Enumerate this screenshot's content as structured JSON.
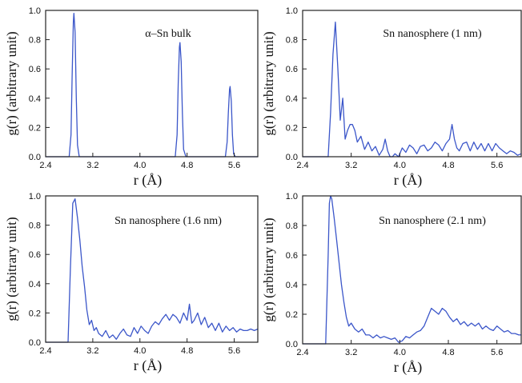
{
  "line_color": "#3b56c9",
  "chart_data": [
    {
      "type": "line",
      "title": "α–Sn bulk",
      "xlabel": "r (Å)",
      "ylabel": "g(r) (arbitrary unit)",
      "xlim": [
        2.4,
        6.0
      ],
      "ylim": [
        0,
        1.0
      ],
      "xticks": [
        "2.4",
        "3.2",
        "4.0",
        "4.8",
        "5.6"
      ],
      "yticks": [
        "0.0",
        "0.2",
        "0.4",
        "0.6",
        "0.8",
        "1.0"
      ],
      "series": [
        {
          "x": [
            2.4,
            2.8,
            2.83,
            2.85,
            2.87,
            2.88,
            2.9,
            2.92,
            2.94,
            2.97,
            3.0,
            4.6,
            4.63,
            4.65,
            4.67,
            4.68,
            4.7,
            4.72,
            4.74,
            4.78,
            5.45,
            5.48,
            5.5,
            5.52,
            5.53,
            5.55,
            5.57,
            5.59,
            5.62,
            6.0
          ],
          "y": [
            0,
            0,
            0.15,
            0.55,
            0.92,
            0.98,
            0.85,
            0.4,
            0.08,
            0,
            0,
            0,
            0.15,
            0.5,
            0.75,
            0.78,
            0.65,
            0.3,
            0.05,
            0,
            0,
            0.1,
            0.3,
            0.46,
            0.48,
            0.38,
            0.15,
            0.02,
            0,
            0
          ]
        }
      ]
    },
    {
      "type": "line",
      "title": "Sn nanosphere (1 nm)",
      "xlabel": "r (Å)",
      "ylabel": "g(r) (arbitrary unit)",
      "xlim": [
        2.4,
        6.0
      ],
      "ylim": [
        0,
        1.0
      ],
      "xticks": [
        "2.4",
        "3.2",
        "4.0",
        "4.8",
        "5.6"
      ],
      "yticks": [
        "0.0",
        "0.2",
        "0.4",
        "0.6",
        "0.8",
        "1.0"
      ],
      "series": [
        {
          "x": [
            2.4,
            2.82,
            2.86,
            2.9,
            2.94,
            2.98,
            3.02,
            3.06,
            3.1,
            3.14,
            3.18,
            3.22,
            3.26,
            3.3,
            3.36,
            3.42,
            3.48,
            3.54,
            3.6,
            3.66,
            3.72,
            3.76,
            3.8,
            3.84,
            3.88,
            3.92,
            3.98,
            4.04,
            4.1,
            4.16,
            4.22,
            4.28,
            4.34,
            4.4,
            4.46,
            4.52,
            4.58,
            4.64,
            4.7,
            4.76,
            4.82,
            4.86,
            4.9,
            4.94,
            4.98,
            5.04,
            5.1,
            5.16,
            5.22,
            5.28,
            5.34,
            5.4,
            5.46,
            5.52,
            5.58,
            5.64,
            5.7,
            5.76,
            5.82,
            5.88,
            5.94,
            6.0
          ],
          "y": [
            0,
            0,
            0.3,
            0.7,
            0.92,
            0.6,
            0.25,
            0.4,
            0.12,
            0.18,
            0.22,
            0.22,
            0.18,
            0.1,
            0.14,
            0.05,
            0.1,
            0.04,
            0.07,
            0.01,
            0.05,
            0.12,
            0.04,
            0.0,
            0.0,
            0.02,
            0.0,
            0.06,
            0.03,
            0.08,
            0.06,
            0.02,
            0.07,
            0.08,
            0.04,
            0.06,
            0.1,
            0.08,
            0.04,
            0.09,
            0.12,
            0.22,
            0.12,
            0.06,
            0.04,
            0.09,
            0.1,
            0.04,
            0.1,
            0.05,
            0.09,
            0.04,
            0.09,
            0.04,
            0.09,
            0.06,
            0.04,
            0.02,
            0.04,
            0.03,
            0.01,
            0.02
          ]
        }
      ]
    },
    {
      "type": "line",
      "title": "Sn nanosphere (1.6 nm)",
      "xlabel": "r (Å)",
      "ylabel": "g(r) (arbitrary unit)",
      "xlim": [
        2.4,
        6.0
      ],
      "ylim": [
        0,
        1.0
      ],
      "xticks": [
        "2.4",
        "3.2",
        "4.0",
        "4.8",
        "5.6"
      ],
      "yticks": [
        "0.0",
        "0.2",
        "0.4",
        "0.6",
        "0.8",
        "1.0"
      ],
      "series": [
        {
          "x": [
            2.4,
            2.78,
            2.82,
            2.86,
            2.9,
            2.94,
            2.98,
            3.02,
            3.06,
            3.1,
            3.14,
            3.18,
            3.22,
            3.26,
            3.3,
            3.36,
            3.42,
            3.48,
            3.54,
            3.6,
            3.66,
            3.72,
            3.78,
            3.84,
            3.9,
            3.96,
            4.02,
            4.08,
            4.14,
            4.2,
            4.26,
            4.32,
            4.38,
            4.44,
            4.5,
            4.56,
            4.62,
            4.68,
            4.74,
            4.8,
            4.84,
            4.88,
            4.92,
            4.98,
            5.04,
            5.1,
            5.16,
            5.22,
            5.28,
            5.34,
            5.4,
            5.46,
            5.52,
            5.58,
            5.64,
            5.7,
            5.76,
            5.82,
            5.88,
            5.94,
            6.0
          ],
          "y": [
            0,
            0,
            0.5,
            0.95,
            0.98,
            0.85,
            0.7,
            0.52,
            0.38,
            0.22,
            0.12,
            0.15,
            0.08,
            0.1,
            0.06,
            0.04,
            0.08,
            0.03,
            0.05,
            0.02,
            0.06,
            0.09,
            0.05,
            0.04,
            0.1,
            0.06,
            0.11,
            0.08,
            0.06,
            0.11,
            0.14,
            0.12,
            0.16,
            0.19,
            0.15,
            0.19,
            0.17,
            0.13,
            0.2,
            0.15,
            0.26,
            0.13,
            0.15,
            0.2,
            0.12,
            0.17,
            0.1,
            0.13,
            0.08,
            0.13,
            0.07,
            0.11,
            0.08,
            0.1,
            0.07,
            0.09,
            0.08,
            0.08,
            0.09,
            0.08,
            0.09
          ]
        }
      ]
    },
    {
      "type": "line",
      "title": "Sn nanosphere (2.1 nm)",
      "xlabel": "r (Å)",
      "ylabel": "g(r) (arbitrary unit)",
      "xlim": [
        2.4,
        6.0
      ],
      "ylim": [
        0,
        1.0
      ],
      "xticks": [
        "2.4",
        "3.2",
        "4.0",
        "4.8",
        "5.6"
      ],
      "yticks": [
        "0.0",
        "0.2",
        "0.4",
        "0.6",
        "0.8",
        "1.0"
      ],
      "series": [
        {
          "x": [
            2.4,
            2.78,
            2.82,
            2.84,
            2.86,
            2.88,
            2.92,
            2.96,
            3.0,
            3.04,
            3.08,
            3.12,
            3.16,
            3.2,
            3.26,
            3.32,
            3.38,
            3.44,
            3.5,
            3.56,
            3.62,
            3.68,
            3.74,
            3.8,
            3.86,
            3.92,
            3.98,
            4.04,
            4.1,
            4.16,
            4.22,
            4.28,
            4.34,
            4.4,
            4.46,
            4.52,
            4.58,
            4.64,
            4.7,
            4.76,
            4.82,
            4.88,
            4.94,
            5.0,
            5.06,
            5.12,
            5.18,
            5.24,
            5.3,
            5.36,
            5.42,
            5.48,
            5.54,
            5.6,
            5.66,
            5.72,
            5.78,
            5.84,
            5.9,
            5.96,
            6.0
          ],
          "y": [
            0,
            0,
            0.6,
            0.95,
            1.0,
            0.98,
            0.85,
            0.7,
            0.55,
            0.4,
            0.28,
            0.18,
            0.12,
            0.14,
            0.1,
            0.08,
            0.1,
            0.06,
            0.06,
            0.04,
            0.06,
            0.04,
            0.05,
            0.04,
            0.03,
            0.04,
            0.01,
            0.02,
            0.05,
            0.04,
            0.06,
            0.08,
            0.09,
            0.12,
            0.18,
            0.24,
            0.22,
            0.2,
            0.24,
            0.22,
            0.18,
            0.15,
            0.17,
            0.13,
            0.15,
            0.12,
            0.14,
            0.12,
            0.14,
            0.1,
            0.12,
            0.1,
            0.09,
            0.12,
            0.1,
            0.08,
            0.09,
            0.07,
            0.07,
            0.06,
            0.06
          ]
        }
      ]
    }
  ]
}
